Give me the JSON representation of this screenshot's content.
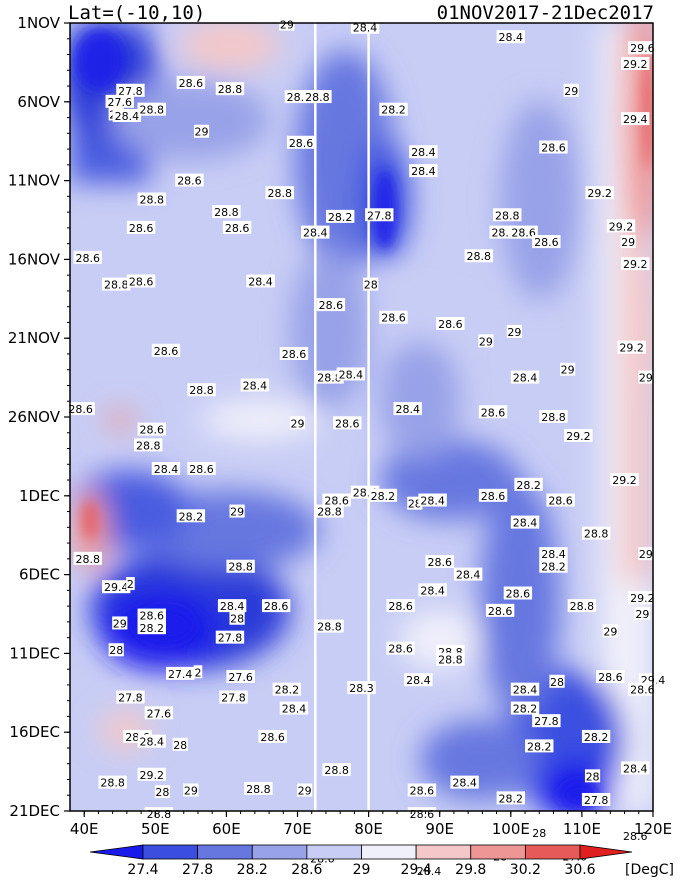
{
  "chart_data": {
    "type": "heatmap",
    "title_left": "Lat=(-10,10)",
    "title_right": "01NOV2017-21Dec2017",
    "x_axis": {
      "range": [
        38,
        120
      ],
      "ticks": [
        40,
        50,
        60,
        70,
        80,
        90,
        100,
        110,
        120
      ],
      "tick_labels": [
        "40E",
        "50E",
        "60E",
        "70E",
        "80E",
        "90E",
        "100E",
        "110E",
        "120E"
      ]
    },
    "y_axis": {
      "range_days_from_top": [
        0,
        50
      ],
      "ticks": [
        0,
        5,
        10,
        15,
        20,
        25,
        30,
        35,
        40,
        45,
        50
      ],
      "tick_labels": [
        "1NOV",
        "6NOV",
        "11NOV",
        "16NOV",
        "21NOV",
        "26NOV",
        "1DEC",
        "6DEC",
        "11DEC",
        "16DEC",
        "21DEC"
      ]
    },
    "white_vertical_lines_lon": [
      72.5,
      80
    ],
    "colorbar": {
      "unit": "[DegC]",
      "labels": [
        "27.4",
        "27.8",
        "28.2",
        "28.6",
        "29",
        "29.4",
        "29.8",
        "30.2",
        "30.6"
      ],
      "colors": [
        "#1a1aeb",
        "#3a4fe0",
        "#6677e0",
        "#98a2e8",
        "#c8cdf5",
        "#f0f0fa",
        "#f4c8c8",
        "#ee9696",
        "#e65a5a",
        "#e02020"
      ]
    },
    "contour_labels": [
      {
        "lon": 79.5,
        "day": 0.3,
        "text": "28.4"
      },
      {
        "lon": 68.5,
        "day": 0.1,
        "text": "29"
      },
      {
        "lon": 100,
        "day": 0.9,
        "text": "28.4"
      },
      {
        "lon": 118.5,
        "day": 1.6,
        "text": "29.6"
      },
      {
        "lon": 117.5,
        "day": 2.6,
        "text": "29.2"
      },
      {
        "lon": 46.5,
        "day": 4.3,
        "text": "27.8"
      },
      {
        "lon": 55,
        "day": 3.8,
        "text": "28.6"
      },
      {
        "lon": 60.5,
        "day": 4.2,
        "text": "28.8"
      },
      {
        "lon": 70.2,
        "day": 4.7,
        "text": "28.8"
      },
      {
        "lon": 72.8,
        "day": 4.7,
        "text": "28.8"
      },
      {
        "lon": 108.5,
        "day": 4.3,
        "text": "29"
      },
      {
        "lon": 45,
        "day": 5.0,
        "text": "27.6"
      },
      {
        "lon": 44.5,
        "day": 5.8,
        "text": "28"
      },
      {
        "lon": 46,
        "day": 5.9,
        "text": "28.4"
      },
      {
        "lon": 49.5,
        "day": 5.5,
        "text": "28.8"
      },
      {
        "lon": 83.5,
        "day": 5.5,
        "text": "28.2"
      },
      {
        "lon": 117.5,
        "day": 6.1,
        "text": "29.4"
      },
      {
        "lon": 56.5,
        "day": 6.9,
        "text": "29"
      },
      {
        "lon": 70.5,
        "day": 7.6,
        "text": "28.6"
      },
      {
        "lon": 106,
        "day": 7.9,
        "text": "28.6"
      },
      {
        "lon": 87.7,
        "day": 8.2,
        "text": "28.4"
      },
      {
        "lon": 87.7,
        "day": 9.4,
        "text": "28.4"
      },
      {
        "lon": 54.8,
        "day": 10.0,
        "text": "28.6"
      },
      {
        "lon": 49.5,
        "day": 11.2,
        "text": "28.8"
      },
      {
        "lon": 67.5,
        "day": 10.8,
        "text": "28.8"
      },
      {
        "lon": 112.5,
        "day": 10.8,
        "text": "29.2"
      },
      {
        "lon": 60,
        "day": 12.0,
        "text": "28.8"
      },
      {
        "lon": 76,
        "day": 12.3,
        "text": "28.2"
      },
      {
        "lon": 81.5,
        "day": 12.2,
        "text": "27.8"
      },
      {
        "lon": 99.5,
        "day": 12.2,
        "text": "28.8"
      },
      {
        "lon": 48,
        "day": 13.0,
        "text": "28.6"
      },
      {
        "lon": 61.5,
        "day": 13.0,
        "text": "28.6"
      },
      {
        "lon": 72.5,
        "day": 13.3,
        "text": "28.4"
      },
      {
        "lon": 99,
        "day": 13.3,
        "text": "28.6"
      },
      {
        "lon": 101.8,
        "day": 13.3,
        "text": "28.6"
      },
      {
        "lon": 115.5,
        "day": 12.9,
        "text": "29.2"
      },
      {
        "lon": 105,
        "day": 13.9,
        "text": "28.6"
      },
      {
        "lon": 116.5,
        "day": 13.9,
        "text": "29"
      },
      {
        "lon": 40.5,
        "day": 14.9,
        "text": "28.6"
      },
      {
        "lon": 95.5,
        "day": 14.8,
        "text": "28.8"
      },
      {
        "lon": 117.5,
        "day": 15.3,
        "text": "29.2"
      },
      {
        "lon": 44.5,
        "day": 16.6,
        "text": "28.8"
      },
      {
        "lon": 48,
        "day": 16.4,
        "text": "28.6"
      },
      {
        "lon": 64.8,
        "day": 16.4,
        "text": "28.4"
      },
      {
        "lon": 80.3,
        "day": 16.6,
        "text": "28"
      },
      {
        "lon": 74.7,
        "day": 17.9,
        "text": "28.6"
      },
      {
        "lon": 83.5,
        "day": 18.7,
        "text": "28.6"
      },
      {
        "lon": 91.5,
        "day": 19.1,
        "text": "28.6"
      },
      {
        "lon": 96.5,
        "day": 20.2,
        "text": "29"
      },
      {
        "lon": 100.5,
        "day": 19.6,
        "text": "29"
      },
      {
        "lon": 117,
        "day": 20.6,
        "text": "29.2"
      },
      {
        "lon": 51.5,
        "day": 20.8,
        "text": "28.6"
      },
      {
        "lon": 69.5,
        "day": 21.0,
        "text": "28.6"
      },
      {
        "lon": 74.5,
        "day": 22.5,
        "text": "28.8"
      },
      {
        "lon": 77.5,
        "day": 22.3,
        "text": "28.4"
      },
      {
        "lon": 102,
        "day": 22.5,
        "text": "28.4"
      },
      {
        "lon": 108,
        "day": 22.0,
        "text": "29"
      },
      {
        "lon": 119,
        "day": 22.5,
        "text": "29"
      },
      {
        "lon": 56.5,
        "day": 23.3,
        "text": "28.8"
      },
      {
        "lon": 64,
        "day": 23.0,
        "text": "28.4"
      },
      {
        "lon": 39.5,
        "day": 24.5,
        "text": "28.6"
      },
      {
        "lon": 85.5,
        "day": 24.5,
        "text": "28.4"
      },
      {
        "lon": 97.5,
        "day": 24.7,
        "text": "28.6"
      },
      {
        "lon": 106,
        "day": 25.0,
        "text": "28.8"
      },
      {
        "lon": 70,
        "day": 25.4,
        "text": "29"
      },
      {
        "lon": 77,
        "day": 25.4,
        "text": "28.6"
      },
      {
        "lon": 49.5,
        "day": 25.8,
        "text": "28.6"
      },
      {
        "lon": 49,
        "day": 26.8,
        "text": "28.8"
      },
      {
        "lon": 109.5,
        "day": 26.2,
        "text": "29.2"
      },
      {
        "lon": 51.5,
        "day": 28.3,
        "text": "28.4"
      },
      {
        "lon": 56.5,
        "day": 28.3,
        "text": "28.6"
      },
      {
        "lon": 102.5,
        "day": 29.3,
        "text": "28.2"
      },
      {
        "lon": 116,
        "day": 29.0,
        "text": "29.2"
      },
      {
        "lon": 75.5,
        "day": 30.3,
        "text": "28.6"
      },
      {
        "lon": 79.5,
        "day": 29.8,
        "text": "28.4"
      },
      {
        "lon": 82,
        "day": 30.0,
        "text": "28.2"
      },
      {
        "lon": 86.5,
        "day": 30.5,
        "text": "28"
      },
      {
        "lon": 89,
        "day": 30.3,
        "text": "28.4"
      },
      {
        "lon": 97.5,
        "day": 30.0,
        "text": "28.6"
      },
      {
        "lon": 107,
        "day": 30.3,
        "text": "28.6"
      },
      {
        "lon": 74.5,
        "day": 31.0,
        "text": "28.8"
      },
      {
        "lon": 55,
        "day": 31.3,
        "text": "28.2"
      },
      {
        "lon": 61.5,
        "day": 31.0,
        "text": "29"
      },
      {
        "lon": 102,
        "day": 31.7,
        "text": "28.4"
      },
      {
        "lon": 112,
        "day": 32.4,
        "text": "28.8"
      },
      {
        "lon": 119,
        "day": 33.7,
        "text": "29"
      },
      {
        "lon": 106,
        "day": 33.7,
        "text": "28.4"
      },
      {
        "lon": 106,
        "day": 34.5,
        "text": "28.2"
      },
      {
        "lon": 62,
        "day": 34.5,
        "text": "28.8"
      },
      {
        "lon": 90,
        "day": 34.2,
        "text": "28.6"
      },
      {
        "lon": 94,
        "day": 35.0,
        "text": "28.4"
      },
      {
        "lon": 40.5,
        "day": 34.0,
        "text": "28.8"
      },
      {
        "lon": 44.5,
        "day": 35.8,
        "text": "29.4"
      },
      {
        "lon": 46.5,
        "day": 35.6,
        "text": "2"
      },
      {
        "lon": 89,
        "day": 36.0,
        "text": "28.4"
      },
      {
        "lon": 101,
        "day": 36.2,
        "text": "28.6"
      },
      {
        "lon": 118.5,
        "day": 36.5,
        "text": "29.2"
      },
      {
        "lon": 60.8,
        "day": 37.0,
        "text": "28.4"
      },
      {
        "lon": 67,
        "day": 37.0,
        "text": "28.6"
      },
      {
        "lon": 49.5,
        "day": 37.6,
        "text": "28.6"
      },
      {
        "lon": 84.5,
        "day": 37.0,
        "text": "28.6"
      },
      {
        "lon": 98.5,
        "day": 37.3,
        "text": "28.6"
      },
      {
        "lon": 110,
        "day": 37.0,
        "text": "28.8"
      },
      {
        "lon": 118.5,
        "day": 37.5,
        "text": "29"
      },
      {
        "lon": 45,
        "day": 38.1,
        "text": "29"
      },
      {
        "lon": 49.5,
        "day": 38.4,
        "text": "28.2"
      },
      {
        "lon": 61.5,
        "day": 37.8,
        "text": "28"
      },
      {
        "lon": 74.5,
        "day": 38.3,
        "text": "28.8"
      },
      {
        "lon": 114,
        "day": 38.6,
        "text": "29"
      },
      {
        "lon": 60.5,
        "day": 39.0,
        "text": "27.8"
      },
      {
        "lon": 84.5,
        "day": 39.7,
        "text": "28.6"
      },
      {
        "lon": 91.5,
        "day": 39.9,
        "text": "28.8"
      },
      {
        "lon": 91.5,
        "day": 40.4,
        "text": "28.8"
      },
      {
        "lon": 44.5,
        "day": 39.8,
        "text": "28"
      },
      {
        "lon": 53.5,
        "day": 41.3,
        "text": "27.4"
      },
      {
        "lon": 56,
        "day": 41.2,
        "text": "2"
      },
      {
        "lon": 62,
        "day": 41.5,
        "text": "27.6"
      },
      {
        "lon": 87,
        "day": 41.7,
        "text": "28.4"
      },
      {
        "lon": 114,
        "day": 41.5,
        "text": "28.6"
      },
      {
        "lon": 120,
        "day": 41.7,
        "text": "29.4"
      },
      {
        "lon": 68.5,
        "day": 42.3,
        "text": "28.2"
      },
      {
        "lon": 79,
        "day": 42.2,
        "text": "28.3"
      },
      {
        "lon": 102,
        "day": 42.3,
        "text": "28.4"
      },
      {
        "lon": 106.5,
        "day": 41.8,
        "text": "28"
      },
      {
        "lon": 118.5,
        "day": 42.3,
        "text": "28.6"
      },
      {
        "lon": 46.5,
        "day": 42.8,
        "text": "27.8"
      },
      {
        "lon": 61,
        "day": 42.8,
        "text": "27.8"
      },
      {
        "lon": 69.5,
        "day": 43.5,
        "text": "28.4"
      },
      {
        "lon": 102,
        "day": 43.5,
        "text": "28.2"
      },
      {
        "lon": 50.5,
        "day": 43.8,
        "text": "27.6"
      },
      {
        "lon": 105,
        "day": 44.3,
        "text": "27.8"
      },
      {
        "lon": 47.5,
        "day": 45.3,
        "text": "28.6"
      },
      {
        "lon": 49.5,
        "day": 45.6,
        "text": "28.4"
      },
      {
        "lon": 66.5,
        "day": 45.3,
        "text": "28.6"
      },
      {
        "lon": 112,
        "day": 45.3,
        "text": "28.2"
      },
      {
        "lon": 53.5,
        "day": 45.8,
        "text": "28"
      },
      {
        "lon": 104,
        "day": 45.9,
        "text": "28.2"
      },
      {
        "lon": 75.5,
        "day": 47.4,
        "text": "28.8"
      },
      {
        "lon": 49.5,
        "day": 47.7,
        "text": "29.2"
      },
      {
        "lon": 117.5,
        "day": 47.3,
        "text": "28.4"
      },
      {
        "lon": 111.5,
        "day": 47.8,
        "text": "28"
      },
      {
        "lon": 44,
        "day": 48.2,
        "text": "28.8"
      },
      {
        "lon": 93.5,
        "day": 48.2,
        "text": "28.4"
      },
      {
        "lon": 64.5,
        "day": 48.6,
        "text": "28.8"
      },
      {
        "lon": 71,
        "day": 48.7,
        "text": "29"
      },
      {
        "lon": 51,
        "day": 48.8,
        "text": "28"
      },
      {
        "lon": 55,
        "day": 48.7,
        "text": "29"
      },
      {
        "lon": 87.5,
        "day": 48.7,
        "text": "28.6"
      },
      {
        "lon": 100,
        "day": 49.2,
        "text": "28.2"
      },
      {
        "lon": 112,
        "day": 49.3,
        "text": "27.8"
      },
      {
        "lon": 50.5,
        "day": 50.2,
        "text": "28.8"
      },
      {
        "lon": 87.5,
        "day": 50.2,
        "text": "28.6"
      },
      {
        "lon": 104,
        "day": 51.4,
        "text": "28"
      },
      {
        "lon": 117.5,
        "day": 51.6,
        "text": "28.6"
      },
      {
        "lon": 67.5,
        "day": 52.4,
        "text": "28.6"
      },
      {
        "lon": 73.5,
        "day": 53.0,
        "text": "28.6"
      },
      {
        "lon": 98.5,
        "day": 52.9,
        "text": "28"
      },
      {
        "lon": 109,
        "day": 52.9,
        "text": "27.6"
      },
      {
        "lon": 88.5,
        "day": 53.8,
        "text": "28.4"
      }
    ]
  }
}
